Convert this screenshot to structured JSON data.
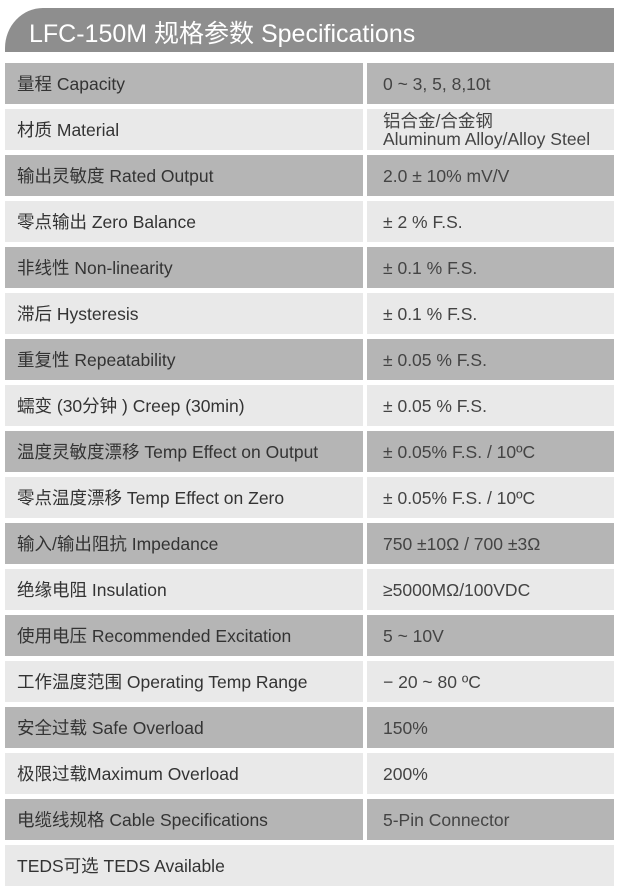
{
  "title": "LFC-150M 规格参数 Specifications",
  "rows": [
    {
      "label": "量程 Capacity",
      "value": "0 ~  3, 5, 8,10t"
    },
    {
      "label": "材质 Material",
      "value": "铝合金/合金钢",
      "value2": "Aluminum Alloy/Alloy Steel"
    },
    {
      "label": "输出灵敏度 Rated Output",
      "value": "2.0 ± 10% mV/V"
    },
    {
      "label": "零点输出  Zero Balance",
      "value": "± 2 % F.S."
    },
    {
      "label": "非线性 Non-linearity",
      "value": "± 0.1 % F.S."
    },
    {
      "label": "滞后 Hysteresis",
      "value": "± 0.1 % F.S."
    },
    {
      "label": "重复性 Repeatability",
      "value": "± 0.05 % F.S."
    },
    {
      "label": "蠕变 (30分钟 ) Creep (30min)",
      "value": "± 0.05 % F.S."
    },
    {
      "label": "温度灵敏度漂移 Temp Effect on Output",
      "value": "± 0.05% F.S. / 10ºC"
    },
    {
      "label": "零点温度漂移 Temp Effect on Zero",
      "value": "± 0.05% F.S. / 10ºC"
    },
    {
      "label": "输入/输出阻抗 Impedance",
      "value": "750 ±10Ω / 700 ±3Ω"
    },
    {
      "label": "绝缘电阻  Insulation",
      "value": "≥5000MΩ/100VDC"
    },
    {
      "label": "使用电压 Recommended Excitation",
      "value": "5 ~ 10V"
    },
    {
      "label": "工作温度范围 Operating Temp  Range",
      "value": "− 20 ~ 80 ºC"
    },
    {
      "label": "安全过载 Safe Overload",
      "value": "150%"
    },
    {
      "label": "极限过载Maximum Overload",
      "value": "200%"
    },
    {
      "label": "电缆线规格 Cable Specifications",
      "value": "5-Pin Connector"
    },
    {
      "label": "TEDS可选 TEDS Available"
    }
  ]
}
